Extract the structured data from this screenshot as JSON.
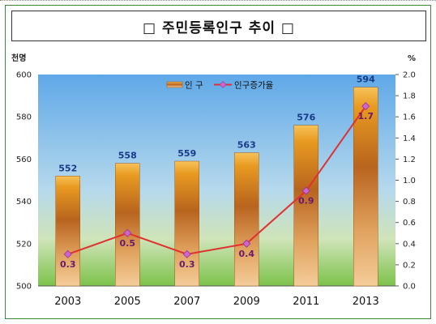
{
  "title": "□ 주민등록인구 추이 □",
  "left_unit": "천명",
  "right_unit": "%",
  "colors": {
    "line": "#e03030",
    "marker": "#cc66cc",
    "bar_value_label": "#1a3a8a",
    "rate_label": "#6a1a6a",
    "frame": "#3a8a3a"
  },
  "chart_data": {
    "type": "bar+line",
    "categories": [
      "2003",
      "2005",
      "2007",
      "2009",
      "2011",
      "2013"
    ],
    "series": [
      {
        "name": "인 구",
        "type": "bar",
        "axis": "left",
        "values": [
          552,
          558,
          559,
          563,
          576,
          594
        ]
      },
      {
        "name": "인구증가율",
        "type": "line",
        "axis": "right",
        "values": [
          0.3,
          0.5,
          0.3,
          0.4,
          0.9,
          1.7
        ]
      }
    ],
    "y_left": {
      "min": 500,
      "max": 600,
      "ticks": [
        "500",
        "520",
        "540",
        "560",
        "580",
        "600"
      ]
    },
    "y_right": {
      "min": 0,
      "max": 2.0,
      "ticks": [
        "0.0",
        "0.2",
        "0.4",
        "0.6",
        "0.8",
        "1.0",
        "1.2",
        "1.4",
        "1.6",
        "1.8",
        "2.0"
      ]
    },
    "legend_position": "top-center",
    "grid": false
  }
}
